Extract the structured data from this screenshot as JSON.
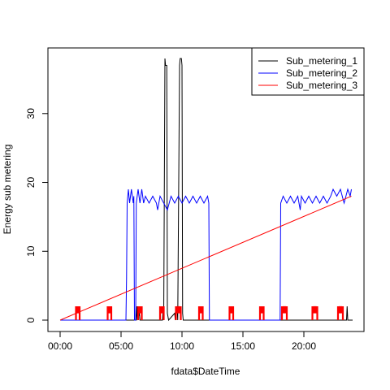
{
  "chart_data": {
    "type": "line",
    "title": "",
    "xlabel": "fdata$DateTime",
    "ylabel": "Energy sub metering",
    "xlim": [
      0,
      24
    ],
    "ylim": [
      0,
      38
    ],
    "x_ticks": [
      {
        "value": 0,
        "label": "00:00"
      },
      {
        "value": 5,
        "label": "05:00"
      },
      {
        "value": 10,
        "label": "10:00"
      },
      {
        "value": 15,
        "label": "15:00"
      },
      {
        "value": 20,
        "label": "20:00"
      }
    ],
    "y_ticks": [
      0,
      10,
      20,
      30
    ],
    "grid": false,
    "legend_position": "top-right",
    "series": [
      {
        "name": "Sub_metering_1",
        "color": "#000000",
        "points": [
          [
            0.0,
            0
          ],
          [
            6.25,
            0
          ],
          [
            6.3,
            2
          ],
          [
            6.35,
            0
          ],
          [
            6.5,
            1
          ],
          [
            6.55,
            0
          ],
          [
            8.4,
            0
          ],
          [
            8.45,
            2
          ],
          [
            8.5,
            0
          ],
          [
            8.6,
            38
          ],
          [
            8.65,
            37
          ],
          [
            8.75,
            37
          ],
          [
            8.8,
            1
          ],
          [
            8.9,
            0
          ],
          [
            9.4,
            1
          ],
          [
            9.45,
            0
          ],
          [
            9.6,
            2
          ],
          [
            9.65,
            0
          ],
          [
            9.8,
            37
          ],
          [
            9.85,
            38
          ],
          [
            9.95,
            38
          ],
          [
            10.0,
            37
          ],
          [
            10.05,
            1
          ],
          [
            10.1,
            0
          ],
          [
            10.3,
            0
          ],
          [
            23.5,
            0
          ],
          [
            23.55,
            2
          ],
          [
            23.6,
            0
          ],
          [
            24.0,
            0
          ]
        ]
      },
      {
        "name": "Sub_metering_2",
        "color": "#0000ff",
        "points": [
          [
            0.0,
            0
          ],
          [
            5.4,
            0
          ],
          [
            5.45,
            6
          ],
          [
            5.5,
            17
          ],
          [
            5.6,
            19
          ],
          [
            5.7,
            17
          ],
          [
            5.85,
            19
          ],
          [
            6.0,
            17
          ],
          [
            6.05,
            18
          ],
          [
            6.1,
            0
          ],
          [
            6.2,
            0
          ],
          [
            6.25,
            17
          ],
          [
            6.4,
            19
          ],
          [
            6.55,
            17
          ],
          [
            6.7,
            19
          ],
          [
            6.85,
            17
          ],
          [
            7.0,
            18
          ],
          [
            7.3,
            17
          ],
          [
            7.6,
            18
          ],
          [
            7.9,
            17
          ],
          [
            8.0,
            16
          ],
          [
            8.2,
            18
          ],
          [
            8.5,
            17
          ],
          [
            8.8,
            16
          ],
          [
            9.1,
            18
          ],
          [
            9.4,
            17
          ],
          [
            9.7,
            18
          ],
          [
            10.0,
            17
          ],
          [
            10.3,
            18
          ],
          [
            10.6,
            17
          ],
          [
            10.9,
            18
          ],
          [
            11.2,
            17
          ],
          [
            11.5,
            18
          ],
          [
            11.8,
            17
          ],
          [
            12.1,
            18
          ],
          [
            12.2,
            17
          ],
          [
            12.25,
            0
          ],
          [
            18.05,
            0
          ],
          [
            18.1,
            17
          ],
          [
            18.3,
            18
          ],
          [
            18.6,
            17
          ],
          [
            18.9,
            18
          ],
          [
            19.2,
            17
          ],
          [
            19.5,
            18
          ],
          [
            19.7,
            16
          ],
          [
            19.8,
            18
          ],
          [
            20.1,
            17
          ],
          [
            20.4,
            18
          ],
          [
            20.7,
            17
          ],
          [
            21.0,
            18
          ],
          [
            21.3,
            17
          ],
          [
            21.6,
            18
          ],
          [
            21.9,
            17
          ],
          [
            22.2,
            18
          ],
          [
            22.4,
            19
          ],
          [
            22.7,
            18
          ],
          [
            23.0,
            19
          ],
          [
            23.3,
            17
          ],
          [
            23.6,
            19
          ],
          [
            23.8,
            18
          ],
          [
            23.9,
            19
          ]
        ]
      },
      {
        "name": "Sub_metering_3",
        "color": "#ff0000",
        "points": [
          [
            0.0,
            0
          ],
          [
            23.9,
            18
          ]
        ],
        "pulses": [
          [
            1.3,
            1.6
          ],
          [
            3.9,
            4.2
          ],
          [
            6.4,
            6.7
          ],
          [
            8.2,
            8.5
          ],
          [
            9.5,
            9.9
          ],
          [
            11.4,
            11.7
          ],
          [
            13.9,
            14.2
          ],
          [
            16.4,
            16.7
          ],
          [
            18.2,
            18.6
          ],
          [
            20.7,
            21.1
          ],
          [
            22.8,
            23.2
          ]
        ],
        "pulse_height": 2
      }
    ]
  }
}
